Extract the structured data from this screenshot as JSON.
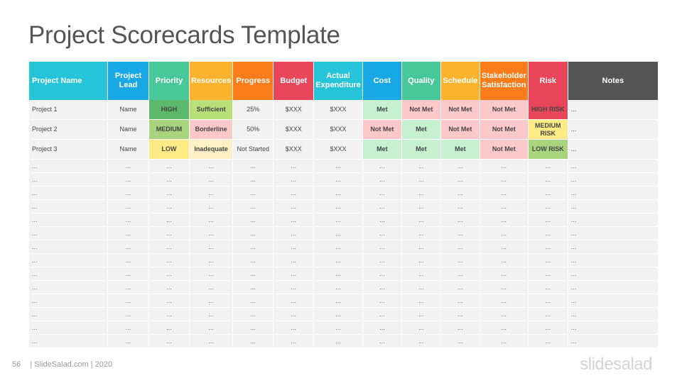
{
  "title": "Project Scorecards Template",
  "columns": [
    {
      "label": "Project Name",
      "color": "#26c4d8"
    },
    {
      "label": "Project Lead",
      "color": "#19a8e6"
    },
    {
      "label": "Priority",
      "color": "#48c79a"
    },
    {
      "label": "Resources",
      "color": "#fbb22c"
    },
    {
      "label": "Progress",
      "color": "#fb7c1a"
    },
    {
      "label": "Budget",
      "color": "#e9465b"
    },
    {
      "label": "Actual Expenditure",
      "color": "#26c4d8"
    },
    {
      "label": "Cost",
      "color": "#19a8e6"
    },
    {
      "label": "Quality",
      "color": "#48c79a"
    },
    {
      "label": "Schedule",
      "color": "#fbb22c"
    },
    {
      "label": "Stakeholder Satisfaction",
      "color": "#fb7c1a"
    },
    {
      "label": "Risk",
      "color": "#e9465b"
    },
    {
      "label": "Notes",
      "color": "#555555"
    }
  ],
  "status_colors": {
    "high": "#5cb96b",
    "medium": "#a7d47c",
    "low": "#ffeb86",
    "sufficient": "#b8df78",
    "borderline": "#fcc9cb",
    "inadequate": "#fff1c5",
    "met": "#c6f0d0",
    "not_met": "#fcc9cb",
    "high_risk": "#e9465b",
    "medium_risk": "#ffeb86",
    "low_risk": "#a7d47c"
  },
  "rows": [
    {
      "cells": [
        {
          "text": "Project 1"
        },
        {
          "text": "Name"
        },
        {
          "text": "HIGH",
          "bg": "#5cb96b",
          "bold": true
        },
        {
          "text": "Sufficient",
          "bg": "#b8df78",
          "bold": true
        },
        {
          "text": "25%"
        },
        {
          "text": "$XXX"
        },
        {
          "text": "$XXX"
        },
        {
          "text": "Met",
          "bg": "#c6f0d0",
          "bold": true
        },
        {
          "text": "Not Met",
          "bg": "#fcc9cb",
          "bold": true
        },
        {
          "text": "Not Met",
          "bg": "#fcc9cb",
          "bold": true
        },
        {
          "text": "Not Met",
          "bg": "#fcc9cb",
          "bold": true
        },
        {
          "text": "HIGH RISK",
          "bg": "#e9465b",
          "bold": true
        },
        {
          "text": "..."
        }
      ]
    },
    {
      "cells": [
        {
          "text": "Project 2"
        },
        {
          "text": "Name"
        },
        {
          "text": "MEDIUM",
          "bg": "#a7d47c",
          "bold": true
        },
        {
          "text": "Borderline",
          "bg": "#fcc9cb",
          "bold": true
        },
        {
          "text": "50%"
        },
        {
          "text": "$XXX"
        },
        {
          "text": "$XXX"
        },
        {
          "text": "Not Met",
          "bg": "#fcc9cb",
          "bold": true
        },
        {
          "text": "Met",
          "bg": "#c6f0d0",
          "bold": true
        },
        {
          "text": "Not Met",
          "bg": "#fcc9cb",
          "bold": true
        },
        {
          "text": "Not Met",
          "bg": "#fcc9cb",
          "bold": true
        },
        {
          "text": "MEDIUM RISK",
          "bg": "#ffeb86",
          "bold": true,
          "wrap": true
        },
        {
          "text": "..."
        }
      ]
    },
    {
      "cells": [
        {
          "text": "Project 3"
        },
        {
          "text": "Name"
        },
        {
          "text": "LOW",
          "bg": "#ffeb86",
          "bold": true
        },
        {
          "text": "Inadequate",
          "bg": "#fff1c5",
          "bold": true
        },
        {
          "text": "Not Started"
        },
        {
          "text": "$XXX"
        },
        {
          "text": "$XXX"
        },
        {
          "text": "Met",
          "bg": "#c6f0d0",
          "bold": true
        },
        {
          "text": "Met",
          "bg": "#c6f0d0",
          "bold": true
        },
        {
          "text": "Met",
          "bg": "#c6f0d0",
          "bold": true
        },
        {
          "text": "Not Met",
          "bg": "#fcc9cb",
          "bold": true
        },
        {
          "text": "LOW RISK",
          "bg": "#a7d47c",
          "bold": true
        },
        {
          "text": "..."
        }
      ]
    }
  ],
  "blank_cell": "...",
  "blank_row_count": 14,
  "footer": {
    "page_number": "56",
    "credit": "| SlideSalad.com | 2020"
  },
  "brand": "slidesalad"
}
